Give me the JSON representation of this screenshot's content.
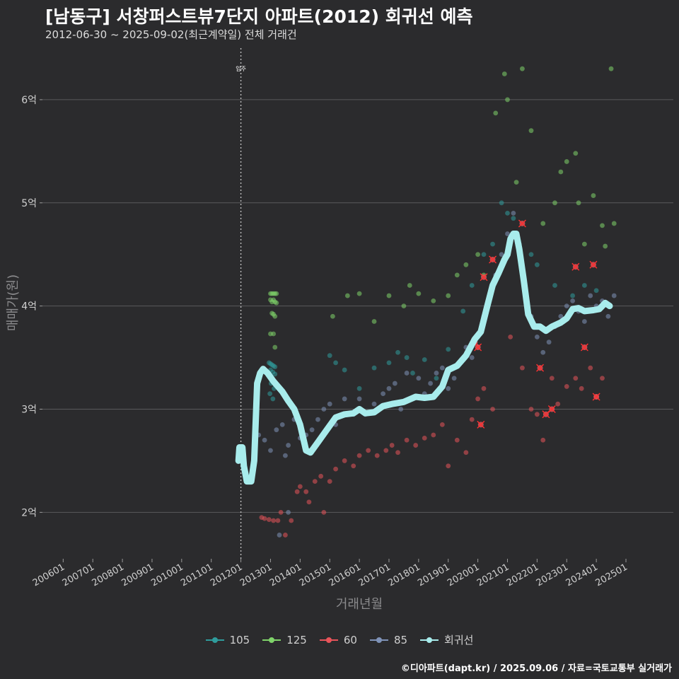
{
  "header": {
    "title": "[남동구] 서창퍼스트뷰7단지 아파트(2012) 회귀선 예측",
    "subtitle": "2012-06-30 ~ 2025-09-02(최근계약일) 전체 거래건",
    "credit": "©디아파트(dapt.kr) / 2025.09.06 / 자료=국토교통부 실거래가"
  },
  "colors": {
    "background": "#2b2b2d",
    "grid": "#5a5a5c",
    "s105": "#2f9c9c",
    "s125": "#7fd36a",
    "s60": "#e8545a",
    "s85": "#7f93b8",
    "regression": "#a8ecec"
  },
  "chart_data": {
    "type": "scatter",
    "title": "[남동구] 서창퍼스트뷰7단지 아파트(2012) 회귀선 예측",
    "xlabel": "거래년월",
    "ylabel": "매매가(원)",
    "x_ticks": [
      "200601",
      "200701",
      "200801",
      "200901",
      "201001",
      "201101",
      "201201",
      "201301",
      "201401",
      "201501",
      "201601",
      "201701",
      "201801",
      "201901",
      "202001",
      "202101",
      "202201",
      "202301",
      "202401",
      "202501"
    ],
    "y_ticks": [
      {
        "value": 2,
        "label": "2억"
      },
      {
        "value": 3,
        "label": "3억"
      },
      {
        "value": 4,
        "label": "4억"
      },
      {
        "value": 5,
        "label": "5억"
      },
      {
        "value": 6,
        "label": "6억"
      }
    ],
    "xlim": [
      2005.3,
      2026.6
    ],
    "ylim": [
      1.55,
      6.5
    ],
    "annotation": {
      "x": 2012.0,
      "label": "입주"
    },
    "legend": [
      {
        "key": "s105",
        "label": "105"
      },
      {
        "key": "s125",
        "label": "125"
      },
      {
        "key": "s60",
        "label": "60"
      },
      {
        "key": "s85",
        "label": "85"
      },
      {
        "key": "regression",
        "label": "회귀선"
      }
    ],
    "regression": [
      [
        2011.92,
        2.5
      ],
      [
        2011.95,
        2.63
      ],
      [
        2012.05,
        2.63
      ],
      [
        2012.1,
        2.45
      ],
      [
        2012.2,
        2.3
      ],
      [
        2012.35,
        2.3
      ],
      [
        2012.45,
        2.5
      ],
      [
        2012.55,
        3.25
      ],
      [
        2012.65,
        3.35
      ],
      [
        2012.75,
        3.39
      ],
      [
        2012.9,
        3.35
      ],
      [
        2013.1,
        3.27
      ],
      [
        2013.4,
        3.17
      ],
      [
        2013.6,
        3.08
      ],
      [
        2013.8,
        3.0
      ],
      [
        2014.0,
        2.85
      ],
      [
        2014.2,
        2.6
      ],
      [
        2014.35,
        2.58
      ],
      [
        2014.6,
        2.68
      ],
      [
        2014.9,
        2.8
      ],
      [
        2015.2,
        2.92
      ],
      [
        2015.5,
        2.95
      ],
      [
        2015.8,
        2.96
      ],
      [
        2016.0,
        3.0
      ],
      [
        2016.2,
        2.96
      ],
      [
        2016.5,
        2.97
      ],
      [
        2016.8,
        3.03
      ],
      [
        2017.1,
        3.05
      ],
      [
        2017.5,
        3.07
      ],
      [
        2017.9,
        3.12
      ],
      [
        2018.2,
        3.11
      ],
      [
        2018.5,
        3.12
      ],
      [
        2018.8,
        3.22
      ],
      [
        2019.0,
        3.38
      ],
      [
        2019.3,
        3.42
      ],
      [
        2019.6,
        3.52
      ],
      [
        2019.9,
        3.68
      ],
      [
        2020.1,
        3.75
      ],
      [
        2020.3,
        3.98
      ],
      [
        2020.5,
        4.2
      ],
      [
        2020.7,
        4.32
      ],
      [
        2020.9,
        4.45
      ],
      [
        2021.0,
        4.5
      ],
      [
        2021.1,
        4.65
      ],
      [
        2021.2,
        4.7
      ],
      [
        2021.3,
        4.7
      ],
      [
        2021.4,
        4.55
      ],
      [
        2021.55,
        4.25
      ],
      [
        2021.7,
        3.92
      ],
      [
        2021.9,
        3.8
      ],
      [
        2022.1,
        3.8
      ],
      [
        2022.3,
        3.76
      ],
      [
        2022.5,
        3.8
      ],
      [
        2022.8,
        3.84
      ],
      [
        2023.0,
        3.88
      ],
      [
        2023.2,
        3.97
      ],
      [
        2023.4,
        3.98
      ],
      [
        2023.6,
        3.95
      ],
      [
        2023.9,
        3.96
      ],
      [
        2024.1,
        3.97
      ],
      [
        2024.3,
        4.03
      ],
      [
        2024.45,
        4.0
      ]
    ],
    "series": [
      {
        "name": "105",
        "key": "s105",
        "points": [
          [
            2012.95,
            3.45
          ],
          [
            2013.0,
            3.44
          ],
          [
            2013.05,
            3.43
          ],
          [
            2013.1,
            3.42
          ],
          [
            2013.15,
            3.41
          ],
          [
            2013.0,
            3.38
          ],
          [
            2013.08,
            3.36
          ],
          [
            2013.15,
            3.34
          ],
          [
            2012.95,
            3.32
          ],
          [
            2013.05,
            3.3
          ],
          [
            2013.1,
            3.28
          ],
          [
            2013.02,
            3.25
          ],
          [
            2013.12,
            3.2
          ],
          [
            2012.98,
            3.15
          ],
          [
            2013.08,
            3.1
          ],
          [
            2015.0,
            3.52
          ],
          [
            2015.2,
            3.45
          ],
          [
            2015.5,
            3.38
          ],
          [
            2016.0,
            3.2
          ],
          [
            2016.5,
            3.4
          ],
          [
            2017.0,
            3.45
          ],
          [
            2017.3,
            3.55
          ],
          [
            2017.6,
            3.5
          ],
          [
            2017.8,
            3.35
          ],
          [
            2018.2,
            3.48
          ],
          [
            2018.6,
            3.3
          ],
          [
            2019.0,
            3.58
          ],
          [
            2019.5,
            3.95
          ],
          [
            2019.8,
            4.2
          ],
          [
            2020.2,
            4.5
          ],
          [
            2020.5,
            4.6
          ],
          [
            2020.8,
            5.0
          ],
          [
            2021.0,
            4.9
          ],
          [
            2021.2,
            4.85
          ],
          [
            2021.8,
            4.5
          ],
          [
            2022.0,
            4.4
          ],
          [
            2022.6,
            4.2
          ],
          [
            2023.2,
            4.1
          ],
          [
            2023.6,
            4.2
          ],
          [
            2024.0,
            4.15
          ]
        ]
      },
      {
        "name": "125",
        "key": "s125",
        "points": [
          [
            2013.0,
            4.12
          ],
          [
            2013.05,
            4.12
          ],
          [
            2013.1,
            4.12
          ],
          [
            2013.15,
            4.12
          ],
          [
            2013.2,
            4.12
          ],
          [
            2013.0,
            4.06
          ],
          [
            2013.05,
            4.04
          ],
          [
            2013.1,
            4.06
          ],
          [
            2013.15,
            4.04
          ],
          [
            2013.2,
            4.03
          ],
          [
            2013.05,
            3.93
          ],
          [
            2013.1,
            3.92
          ],
          [
            2013.15,
            3.9
          ],
          [
            2013.0,
            3.73
          ],
          [
            2013.1,
            3.73
          ],
          [
            2013.15,
            3.6
          ],
          [
            2015.1,
            3.9
          ],
          [
            2015.6,
            4.1
          ],
          [
            2016.0,
            4.12
          ],
          [
            2016.5,
            3.85
          ],
          [
            2017.0,
            4.1
          ],
          [
            2017.5,
            4.0
          ],
          [
            2017.7,
            4.2
          ],
          [
            2018.0,
            4.12
          ],
          [
            2018.5,
            4.05
          ],
          [
            2019.0,
            4.1
          ],
          [
            2019.3,
            4.3
          ],
          [
            2019.6,
            4.4
          ],
          [
            2020.0,
            4.5
          ],
          [
            2020.2,
            4.3
          ],
          [
            2020.6,
            5.87
          ],
          [
            2020.9,
            6.25
          ],
          [
            2021.0,
            6.0
          ],
          [
            2021.3,
            5.2
          ],
          [
            2021.5,
            6.3
          ],
          [
            2021.8,
            5.7
          ],
          [
            2022.2,
            4.8
          ],
          [
            2022.6,
            5.0
          ],
          [
            2022.8,
            5.3
          ],
          [
            2023.0,
            5.4
          ],
          [
            2023.3,
            5.48
          ],
          [
            2023.4,
            5.0
          ],
          [
            2023.6,
            4.6
          ],
          [
            2023.9,
            5.07
          ],
          [
            2024.2,
            4.78
          ],
          [
            2024.5,
            6.3
          ],
          [
            2024.6,
            4.8
          ],
          [
            2024.3,
            4.58
          ]
        ]
      },
      {
        "name": "60",
        "key": "s60",
        "points": [
          [
            2012.7,
            1.95
          ],
          [
            2012.8,
            1.94
          ],
          [
            2012.95,
            1.93
          ],
          [
            2013.1,
            1.92
          ],
          [
            2013.25,
            1.92
          ],
          [
            2013.35,
            2.0
          ],
          [
            2013.5,
            1.78
          ],
          [
            2013.7,
            1.92
          ],
          [
            2013.9,
            2.2
          ],
          [
            2014.0,
            2.25
          ],
          [
            2014.2,
            2.2
          ],
          [
            2014.3,
            2.1
          ],
          [
            2014.5,
            2.3
          ],
          [
            2014.7,
            2.35
          ],
          [
            2014.8,
            2.0
          ],
          [
            2015.0,
            2.3
          ],
          [
            2015.2,
            2.42
          ],
          [
            2015.5,
            2.5
          ],
          [
            2015.8,
            2.45
          ],
          [
            2016.0,
            2.55
          ],
          [
            2016.3,
            2.6
          ],
          [
            2016.6,
            2.55
          ],
          [
            2016.9,
            2.6
          ],
          [
            2017.1,
            2.65
          ],
          [
            2017.3,
            2.58
          ],
          [
            2017.6,
            2.7
          ],
          [
            2017.9,
            2.65
          ],
          [
            2018.2,
            2.72
          ],
          [
            2018.5,
            2.75
          ],
          [
            2018.8,
            2.85
          ],
          [
            2019.0,
            2.45
          ],
          [
            2019.3,
            2.7
          ],
          [
            2019.6,
            2.58
          ],
          [
            2019.8,
            2.9
          ],
          [
            2020.0,
            3.1
          ],
          [
            2020.2,
            3.2
          ],
          [
            2020.5,
            3.0
          ],
          [
            2021.1,
            3.7
          ],
          [
            2021.5,
            3.4
          ],
          [
            2021.8,
            3.0
          ],
          [
            2022.0,
            2.95
          ],
          [
            2022.2,
            2.7
          ],
          [
            2022.5,
            3.3
          ],
          [
            2022.7,
            3.05
          ],
          [
            2023.0,
            3.22
          ],
          [
            2023.3,
            3.3
          ],
          [
            2023.5,
            3.2
          ],
          [
            2023.8,
            3.4
          ],
          [
            2024.0,
            3.12
          ],
          [
            2024.2,
            3.3
          ]
        ]
      },
      {
        "name": "85",
        "key": "s85",
        "points": [
          [
            2012.6,
            2.75
          ],
          [
            2012.8,
            2.7
          ],
          [
            2013.0,
            2.6
          ],
          [
            2013.2,
            2.8
          ],
          [
            2013.4,
            2.85
          ],
          [
            2013.5,
            2.55
          ],
          [
            2013.6,
            2.65
          ],
          [
            2013.8,
            2.9
          ],
          [
            2014.0,
            2.72
          ],
          [
            2014.2,
            2.75
          ],
          [
            2014.4,
            2.8
          ],
          [
            2014.6,
            2.9
          ],
          [
            2014.8,
            3.0
          ],
          [
            2015.0,
            3.05
          ],
          [
            2015.2,
            2.85
          ],
          [
            2015.5,
            3.1
          ],
          [
            2015.8,
            2.95
          ],
          [
            2016.0,
            3.1
          ],
          [
            2016.2,
            2.95
          ],
          [
            2016.5,
            3.05
          ],
          [
            2016.8,
            3.15
          ],
          [
            2017.0,
            3.2
          ],
          [
            2017.2,
            3.25
          ],
          [
            2017.4,
            3.0
          ],
          [
            2017.6,
            3.35
          ],
          [
            2017.8,
            3.1
          ],
          [
            2018.0,
            3.3
          ],
          [
            2018.2,
            3.15
          ],
          [
            2018.4,
            3.25
          ],
          [
            2018.6,
            3.35
          ],
          [
            2018.8,
            3.4
          ],
          [
            2019.0,
            3.2
          ],
          [
            2019.2,
            3.3
          ],
          [
            2019.4,
            3.45
          ],
          [
            2019.6,
            3.6
          ],
          [
            2019.8,
            3.5
          ],
          [
            2020.0,
            3.7
          ],
          [
            2020.2,
            3.9
          ],
          [
            2020.4,
            4.1
          ],
          [
            2020.6,
            4.3
          ],
          [
            2020.8,
            4.5
          ],
          [
            2021.0,
            4.7
          ],
          [
            2021.2,
            4.9
          ],
          [
            2021.4,
            4.6
          ],
          [
            2021.6,
            4.2
          ],
          [
            2021.8,
            3.9
          ],
          [
            2022.0,
            3.7
          ],
          [
            2022.2,
            3.55
          ],
          [
            2022.4,
            3.65
          ],
          [
            2022.6,
            3.8
          ],
          [
            2022.8,
            3.9
          ],
          [
            2023.0,
            4.0
          ],
          [
            2023.2,
            4.05
          ],
          [
            2023.4,
            3.95
          ],
          [
            2023.6,
            3.85
          ],
          [
            2023.8,
            4.1
          ],
          [
            2024.0,
            4.0
          ],
          [
            2024.2,
            4.05
          ],
          [
            2024.4,
            3.9
          ],
          [
            2024.6,
            4.1
          ],
          [
            2013.3,
            1.78
          ],
          [
            2013.6,
            2.0
          ]
        ]
      }
    ],
    "marked_points": [
      [
        2019.9,
        3.65
      ],
      [
        2020.0,
        3.6
      ],
      [
        2020.1,
        2.85
      ],
      [
        2020.2,
        4.28
      ],
      [
        2020.5,
        4.45
      ],
      [
        2021.5,
        4.8
      ],
      [
        2022.1,
        3.4
      ],
      [
        2022.5,
        3.0
      ],
      [
        2023.3,
        4.38
      ],
      [
        2023.6,
        3.6
      ],
      [
        2023.9,
        4.4
      ],
      [
        2024.0,
        3.12
      ],
      [
        2022.3,
        2.95
      ]
    ]
  }
}
